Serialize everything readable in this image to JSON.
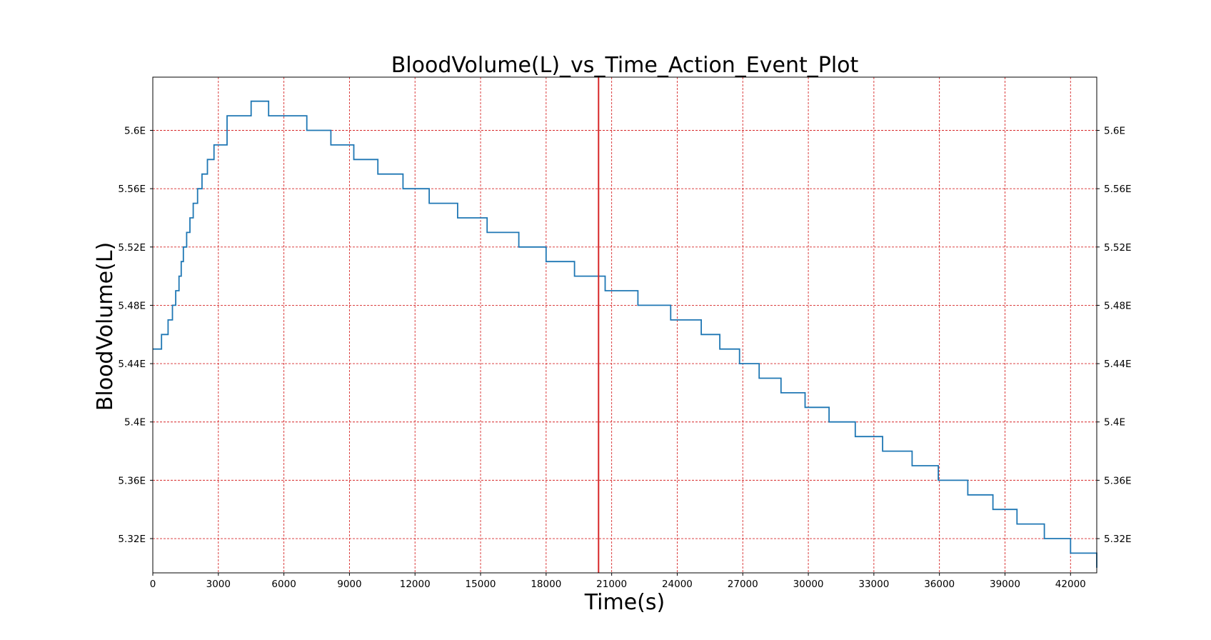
{
  "chart_data": {
    "type": "line",
    "title": "BloodVolume(L)_vs_Time_Action_Event_Plot",
    "xlabel": "Time(s)",
    "ylabel": "BloodVolume(L)",
    "xlim": [
      0,
      43200
    ],
    "ylim": [
      5.2965,
      5.6365
    ],
    "grid": true,
    "grid_color": "#d62728",
    "line_color": "#1f77b4",
    "event_line_color": "#d62728",
    "x_ticks": [
      0,
      3000,
      6000,
      9000,
      12000,
      15000,
      18000,
      21000,
      24000,
      27000,
      30000,
      33000,
      36000,
      39000,
      42000
    ],
    "x_tick_labels": [
      "0",
      "3000",
      "6000",
      "9000",
      "12000",
      "15000",
      "18000",
      "21000",
      "24000",
      "27000",
      "30000",
      "33000",
      "36000",
      "39000",
      "42000"
    ],
    "y_ticks": [
      5.32,
      5.36,
      5.4,
      5.44,
      5.48,
      5.52,
      5.56,
      5.6
    ],
    "y_tick_labels": [
      "5.32E",
      "5.36E",
      "5.4E",
      "5.44E",
      "5.48E",
      "5.52E",
      "5.56E",
      "5.6E"
    ],
    "event_lines": [
      20400
    ],
    "series": [
      {
        "step": "post",
        "x": [
          0,
          400,
          700,
          900,
          1050,
          1200,
          1300,
          1400,
          1550,
          1700,
          1850,
          2050,
          2250,
          2500,
          2800,
          3400,
          4500,
          5300,
          7050,
          8150,
          9200,
          10300,
          11450,
          12650,
          13950,
          15300,
          16750,
          18000,
          19300,
          20700,
          22200,
          23700,
          25100,
          25950,
          26850,
          27750,
          28750,
          29850,
          30950,
          32150,
          33400,
          34750,
          35950,
          37300,
          38450,
          39550,
          40800,
          42000,
          43200
        ],
        "y": [
          5.45,
          5.46,
          5.47,
          5.48,
          5.49,
          5.5,
          5.51,
          5.52,
          5.53,
          5.54,
          5.55,
          5.56,
          5.57,
          5.58,
          5.59,
          5.61,
          5.62,
          5.61,
          5.6,
          5.59,
          5.58,
          5.57,
          5.56,
          5.55,
          5.54,
          5.53,
          5.52,
          5.51,
          5.5,
          5.49,
          5.48,
          5.47,
          5.46,
          5.45,
          5.44,
          5.43,
          5.42,
          5.41,
          5.4,
          5.39,
          5.38,
          5.37,
          5.36,
          5.35,
          5.34,
          5.33,
          5.32,
          5.31,
          5.3
        ]
      }
    ]
  }
}
